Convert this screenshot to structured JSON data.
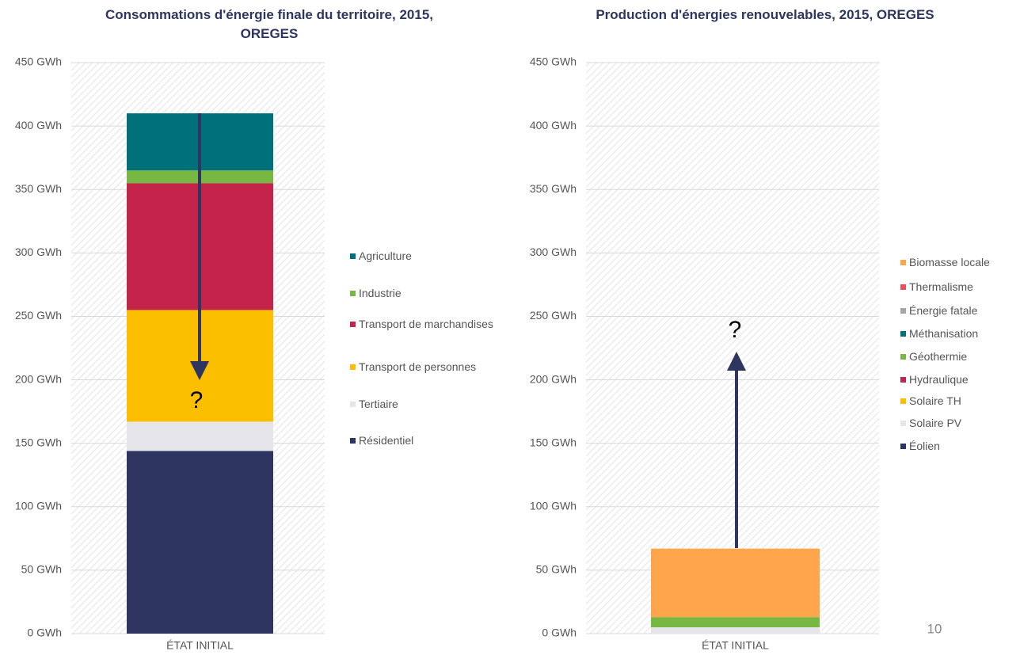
{
  "chart_data": [
    {
      "type": "stacked_bar",
      "title": "Consommations d'énergie finale du territoire, 2015, OREGES",
      "categories": [
        "ÉTAT INITIAL"
      ],
      "series": [
        {
          "name": "Résidentiel",
          "color": "#2e3560",
          "values": [
            144
          ]
        },
        {
          "name": "Tertiaire",
          "color": "#e6e6ea",
          "values": [
            23
          ]
        },
        {
          "name": "Transport de personnes",
          "color": "#fbbf00",
          "values": [
            88
          ]
        },
        {
          "name": "Transport de marchandises",
          "color": "#c4244a",
          "values": [
            100
          ]
        },
        {
          "name": "Industrie",
          "color": "#77b843",
          "values": [
            10
          ]
        },
        {
          "name": "Agriculture",
          "color": "#00707a",
          "values": [
            45
          ]
        }
      ],
      "ylim": [
        0,
        450
      ],
      "yticks": [
        {
          "value": 0,
          "label": "0 GWh"
        },
        {
          "value": 50,
          "label": "50 GWh"
        },
        {
          "value": 100,
          "label": "100 GWh"
        },
        {
          "value": 150,
          "label": "150 GWh"
        },
        {
          "value": 200,
          "label": "200 GWh"
        },
        {
          "value": 250,
          "label": "250 GWh"
        },
        {
          "value": 300,
          "label": "300 GWh"
        },
        {
          "value": 350,
          "label": "350 GWh"
        },
        {
          "value": 400,
          "label": "400 GWh"
        },
        {
          "value": 450,
          "label": "450 GWh"
        }
      ],
      "grid": true,
      "legend": "right",
      "annotation": "?"
    },
    {
      "type": "stacked_bar",
      "title": "Production d'énergies renouvelables, 2015, OREGES",
      "categories": [
        "ÉTAT INITIAL"
      ],
      "series": [
        {
          "name": "Éolien",
          "color": "#2e3560",
          "values": [
            0
          ]
        },
        {
          "name": "Solaire PV",
          "color": "#e6e6ea",
          "values": [
            5
          ]
        },
        {
          "name": "Solaire TH",
          "color": "#fbbf00",
          "values": [
            0
          ]
        },
        {
          "name": "Hydraulique",
          "color": "#c4244a",
          "values": [
            0
          ]
        },
        {
          "name": "Géothermie",
          "color": "#77b843",
          "values": [
            8
          ]
        },
        {
          "name": "Méthanisation",
          "color": "#00707a",
          "values": [
            0
          ]
        },
        {
          "name": "Énergie fatale",
          "color": "#a6a6a6",
          "values": [
            0
          ]
        },
        {
          "name": "Thermalisme",
          "color": "#f04c5c",
          "values": [
            0
          ]
        },
        {
          "name": "Biomasse locale",
          "color": "#ffa64d",
          "values": [
            54
          ]
        }
      ],
      "ylim": [
        0,
        450
      ],
      "yticks": [
        {
          "value": 0,
          "label": "0 GWh"
        },
        {
          "value": 50,
          "label": "50 GWh"
        },
        {
          "value": 100,
          "label": "100 GWh"
        },
        {
          "value": 150,
          "label": "150 GWh"
        },
        {
          "value": 200,
          "label": "200 GWh"
        },
        {
          "value": 250,
          "label": "250 GWh"
        },
        {
          "value": 300,
          "label": "300 GWh"
        },
        {
          "value": 350,
          "label": "350 GWh"
        },
        {
          "value": 400,
          "label": "400 GWh"
        },
        {
          "value": 450,
          "label": "450 GWh"
        }
      ],
      "grid": true,
      "legend": "right",
      "annotation": "?"
    }
  ],
  "page_number": "10"
}
